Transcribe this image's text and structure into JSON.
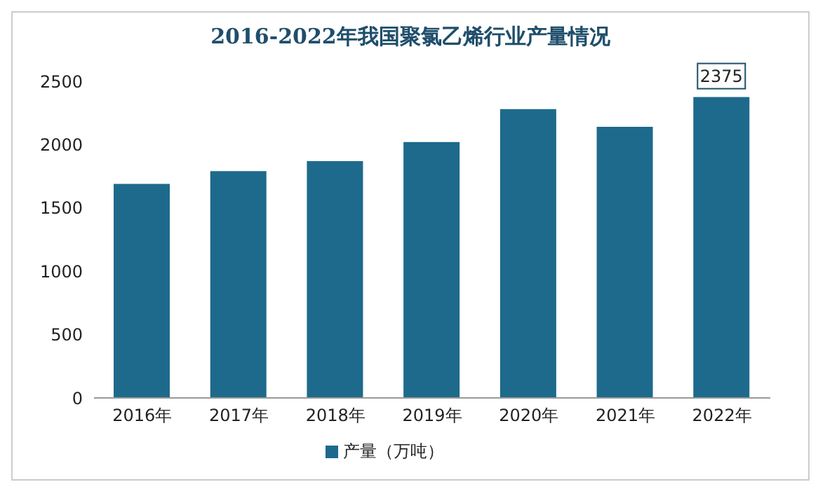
{
  "chart_data": {
    "type": "bar",
    "title": "2016-2022年我国聚氯乙烯行业产量情况",
    "categories": [
      "2016年",
      "2017年",
      "2018年",
      "2019年",
      "2020年",
      "2021年",
      "2022年"
    ],
    "series": [
      {
        "name": "产量（万吨）",
        "color": "#1d6a8c",
        "values": [
          1690,
          1790,
          1870,
          2020,
          2280,
          2140,
          2375
        ],
        "value_labels": [
          null,
          null,
          null,
          null,
          null,
          null,
          "2375"
        ]
      }
    ],
    "ylim": [
      0,
      2500
    ],
    "yticks": [
      0,
      500,
      1000,
      1500,
      2000,
      2500
    ],
    "grid": false,
    "legend": "bottom"
  }
}
